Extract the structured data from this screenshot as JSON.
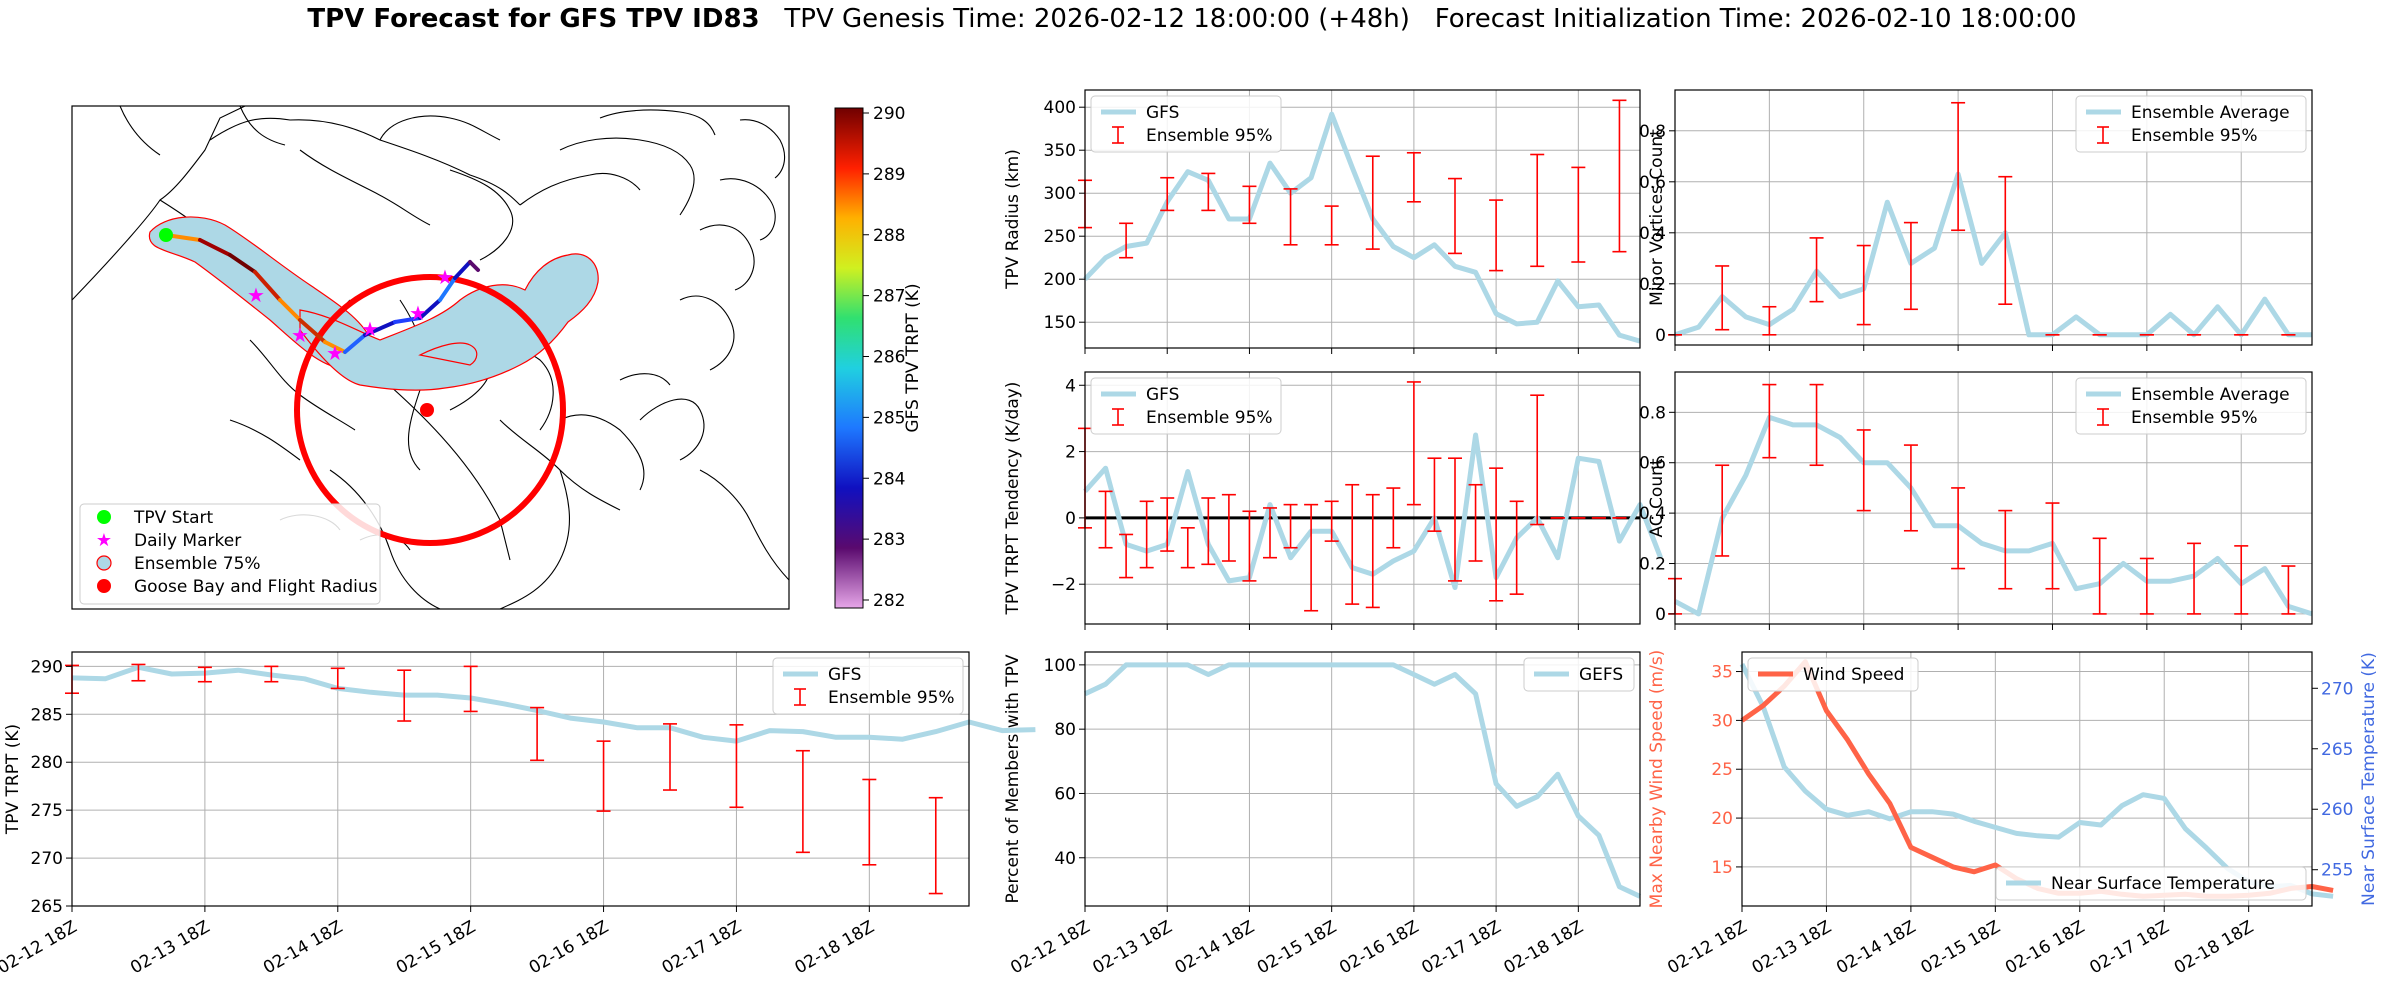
{
  "figure": {
    "title_bold": "TPV Forecast for GFS TPV ID83",
    "title_rest": "   TPV Genesis Time: 2026-02-12 18:00:00 (+48h)   Forecast Initialization Time: 2026-02-10 18:00:00"
  },
  "map": {
    "legend": [
      "TPV Start",
      "Daily Marker",
      "Ensemble 75%",
      "Goose Bay and Flight Radius"
    ],
    "colorbar_label": "GFS TPV TRPT (K)",
    "colorbar_ticks": [
      "282",
      "283",
      "284",
      "285",
      "286",
      "287",
      "288",
      "289",
      "290"
    ]
  },
  "colors": {
    "gfs_line": "#add8e6",
    "ensemble_bar": "#ff0000",
    "wind_line": "#ff6347",
    "temp_line": "#add8e6",
    "wind_axis": "#ff6347",
    "temp_axis": "#4169e1",
    "zero_line": "#000000",
    "grid": "#b0b0b0"
  },
  "chart_data": [
    {
      "id": "radius",
      "type": "line",
      "ylabel": "TPV Radius (km)",
      "ylim": [
        120,
        420
      ],
      "yticks": [
        150,
        200,
        250,
        300,
        350,
        400
      ],
      "xlim": [
        0,
        6.75
      ],
      "show_xticks": false,
      "legend": [
        "GFS",
        "Ensemble 95%"
      ],
      "legend_pos": "top-left",
      "series": [
        {
          "name": "GFS",
          "x_step": 0.25,
          "values": [
            200,
            225,
            238,
            242,
            290,
            325,
            315,
            270,
            270,
            335,
            300,
            318,
            392,
            330,
            270,
            238,
            225,
            240,
            215,
            208,
            160,
            148,
            150,
            198,
            168,
            170,
            135,
            128
          ]
        }
      ],
      "errorbars": {
        "x_step": 0.5,
        "low": [
          260,
          225,
          280,
          280,
          265,
          240,
          240,
          235,
          290,
          230,
          210,
          215,
          220,
          232
        ],
        "high": [
          315,
          265,
          318,
          323,
          308,
          305,
          285,
          343,
          347,
          317,
          292,
          345,
          330,
          408
        ]
      }
    },
    {
      "id": "minor",
      "type": "line",
      "ylabel": "Minor Vortices Count",
      "ylim": [
        -0.04,
        0.96
      ],
      "yticks": [
        0.0,
        0.2,
        0.4,
        0.6,
        0.8
      ],
      "xlim": [
        0,
        6.75
      ],
      "show_xticks": false,
      "legend": [
        "Ensemble Average",
        "Ensemble 95%"
      ],
      "legend_pos": "top-right",
      "series": [
        {
          "name": "Ensemble Average",
          "x_step": 0.25,
          "values": [
            0.0,
            0.03,
            0.15,
            0.07,
            0.04,
            0.1,
            0.25,
            0.15,
            0.18,
            0.52,
            0.28,
            0.34,
            0.63,
            0.28,
            0.4,
            0.0,
            0.0,
            0.07,
            0.0,
            0.0,
            0.0,
            0.08,
            0.0,
            0.11,
            0.0,
            0.14,
            0.0,
            0.0
          ]
        }
      ],
      "errorbars": {
        "x_step": 0.5,
        "low": [
          0.0,
          0.02,
          0.0,
          0.13,
          0.04,
          0.1,
          0.41,
          0.12,
          0.0,
          0.0,
          0.0,
          0.0,
          0.0,
          0.0
        ],
        "high": [
          0.0,
          0.27,
          0.11,
          0.38,
          0.35,
          0.44,
          0.91,
          0.62,
          0.0,
          0.0,
          0.0,
          0.0,
          0.0,
          0.0
        ]
      }
    },
    {
      "id": "tendency",
      "type": "line",
      "ylabel": "TPV TRPT Tendency (K/day)",
      "ylim": [
        -3.2,
        4.4
      ],
      "yticks": [
        -2,
        0,
        2,
        4
      ],
      "xlim": [
        0,
        6.75
      ],
      "show_xticks": false,
      "zero_line": true,
      "legend": [
        "GFS",
        "Ensemble 95%"
      ],
      "legend_pos": "top-left",
      "series": [
        {
          "name": "GFS",
          "x_step": 0.25,
          "values": [
            0.8,
            1.5,
            -0.8,
            -1.0,
            -0.8,
            1.4,
            -0.8,
            -1.9,
            -1.8,
            0.4,
            -1.2,
            -0.4,
            -0.4,
            -1.5,
            -1.7,
            -1.3,
            -1.0,
            0.0,
            -2.1,
            2.5,
            -1.8,
            -0.6,
            0.0,
            -1.2,
            1.8,
            1.7,
            -0.7,
            0.4,
            -1.2
          ]
        }
      ],
      "errorbars": {
        "x_step": 0.25,
        "low": [
          -0.3,
          -0.9,
          -1.8,
          -1.5,
          -1.0,
          -1.5,
          -1.4,
          -1.3,
          -1.9,
          -1.2,
          -0.9,
          -2.8,
          -0.7,
          -2.6,
          -2.7,
          -0.9,
          0.4,
          -0.4,
          -1.9,
          -1.3,
          -2.5,
          -2.3,
          -0.2,
          0.0,
          0.0,
          0.0,
          0.0
        ],
        "high": [
          2.7,
          0.8,
          -0.5,
          0.5,
          0.6,
          -0.3,
          0.6,
          0.7,
          0.2,
          0.3,
          0.4,
          0.4,
          0.5,
          1.0,
          0.7,
          0.9,
          4.1,
          1.8,
          1.8,
          1.0,
          1.5,
          0.5,
          3.7,
          0.0,
          0.0,
          0.0,
          0.0
        ]
      }
    },
    {
      "id": "ac",
      "type": "line",
      "ylabel": "AC Count",
      "ylim": [
        -0.04,
        0.96
      ],
      "yticks": [
        0.0,
        0.2,
        0.4,
        0.6,
        0.8
      ],
      "xlim": [
        0,
        6.75
      ],
      "show_xticks": false,
      "legend": [
        "Ensemble Average",
        "Ensemble 95%"
      ],
      "legend_pos": "top-right",
      "series": [
        {
          "name": "Ensemble Average",
          "x_step": 0.25,
          "values": [
            0.05,
            0.0,
            0.38,
            0.55,
            0.78,
            0.75,
            0.75,
            0.7,
            0.6,
            0.6,
            0.5,
            0.35,
            0.35,
            0.28,
            0.25,
            0.25,
            0.28,
            0.1,
            0.12,
            0.2,
            0.13,
            0.13,
            0.15,
            0.22,
            0.12,
            0.18,
            0.03,
            0.0
          ]
        }
      ],
      "errorbars": {
        "x_step": 0.5,
        "low": [
          0.0,
          0.23,
          0.62,
          0.59,
          0.41,
          0.33,
          0.18,
          0.1,
          0.1,
          0.0,
          0.0,
          0.0,
          0.0,
          0.0
        ],
        "high": [
          0.14,
          0.59,
          0.91,
          0.91,
          0.73,
          0.67,
          0.5,
          0.41,
          0.44,
          0.3,
          0.22,
          0.28,
          0.27,
          0.19
        ]
      }
    },
    {
      "id": "trpt",
      "type": "line",
      "ylabel": "TPV TRPT (K)",
      "ylim": [
        265,
        291.5
      ],
      "yticks": [
        265,
        270,
        275,
        280,
        285,
        290
      ],
      "xlim": [
        0,
        6.75
      ],
      "show_xticks": true,
      "xticks": [
        "02-12 18Z",
        "02-13 18Z",
        "02-14 18Z",
        "02-15 18Z",
        "02-16 18Z",
        "02-17 18Z",
        "02-18 18Z"
      ],
      "legend": [
        "GFS",
        "Ensemble 95%"
      ],
      "legend_pos": "top-right",
      "series": [
        {
          "name": "GFS",
          "x_step": 0.25,
          "values": [
            288.8,
            288.7,
            289.9,
            289.2,
            289.3,
            289.6,
            289.1,
            288.7,
            287.7,
            287.3,
            287.0,
            287.0,
            286.7,
            286.1,
            285.4,
            284.6,
            284.2,
            283.6,
            283.6,
            282.6,
            282.2,
            283.3,
            283.2,
            282.6,
            282.6,
            282.4,
            283.2,
            284.2,
            283.3,
            283.4
          ]
        }
      ],
      "errorbars": {
        "x_step": 0.5,
        "low": [
          287.2,
          288.5,
          288.4,
          288.4,
          287.7,
          284.3,
          285.3,
          280.2,
          274.9,
          277.1,
          275.3,
          270.6,
          269.3,
          266.3
        ],
        "high": [
          290.1,
          290.2,
          289.9,
          290.0,
          289.8,
          289.6,
          290.0,
          285.7,
          282.2,
          284.0,
          283.9,
          281.2,
          278.2,
          276.3
        ]
      }
    },
    {
      "id": "percent",
      "type": "line",
      "ylabel": "Percent of Members with TPV",
      "ylim": [
        25,
        104
      ],
      "yticks": [
        40,
        60,
        80,
        100
      ],
      "xlim": [
        0,
        6.75
      ],
      "show_xticks": true,
      "xticks": [
        "02-12 18Z",
        "02-13 18Z",
        "02-14 18Z",
        "02-15 18Z",
        "02-16 18Z",
        "02-17 18Z",
        "02-18 18Z"
      ],
      "legend": [
        "GEFS"
      ],
      "legend_pos": "top-right",
      "series": [
        {
          "name": "GEFS",
          "x_step": 0.25,
          "values": [
            91,
            94,
            100,
            100,
            100,
            100,
            97,
            100,
            100,
            100,
            100,
            100,
            100,
            100,
            100,
            100,
            97,
            94,
            97,
            91,
            63,
            56,
            59,
            66,
            53,
            47,
            31,
            28
          ]
        }
      ]
    },
    {
      "id": "wind_temp",
      "type": "line",
      "ylabel": "Max Nearby Wind Speed (m/s)",
      "ylim": [
        11,
        37
      ],
      "yticks": [
        15,
        20,
        25,
        30,
        35
      ],
      "xlim": [
        0,
        6.75
      ],
      "show_xticks": true,
      "xticks": [
        "02-12 18Z",
        "02-13 18Z",
        "02-14 18Z",
        "02-15 18Z",
        "02-16 18Z",
        "02-17 18Z",
        "02-18 18Z"
      ],
      "legend": [
        "Wind Speed"
      ],
      "legend_pos": "top-left",
      "series": [
        {
          "name": "Wind Speed",
          "x_step": 0.25,
          "values": [
            30.0,
            31.5,
            33.5,
            36.0,
            31.0,
            28.0,
            24.5,
            21.5,
            17.0,
            16.0,
            15.0,
            14.5,
            15.2,
            13.8,
            12.8,
            12.3,
            12.3,
            12.5,
            12.2,
            12.0,
            12.1,
            12.2,
            12.0,
            12.0,
            12.1,
            12.3,
            12.8,
            13.0,
            12.6
          ]
        }
      ],
      "secondary": {
        "ylabel": "Near Surface Temperature (K)",
        "ylim": [
          252,
          273
        ],
        "yticks": [
          255,
          260,
          265,
          270
        ],
        "legend": [
          "Near Surface Temperature"
        ],
        "legend_pos": "bottom-right",
        "series": [
          {
            "name": "Near Surface Temperature",
            "x_step": 0.25,
            "values": [
              272.0,
              268.5,
              263.5,
              261.5,
              260.0,
              259.5,
              259.8,
              259.2,
              259.8,
              259.8,
              259.6,
              259.0,
              258.5,
              258.0,
              257.8,
              257.7,
              258.9,
              258.7,
              260.3,
              261.2,
              260.9,
              258.4,
              256.8,
              255.1,
              254.0,
              253.6,
              253.7,
              253.0,
              252.8
            ]
          }
        ]
      }
    }
  ]
}
